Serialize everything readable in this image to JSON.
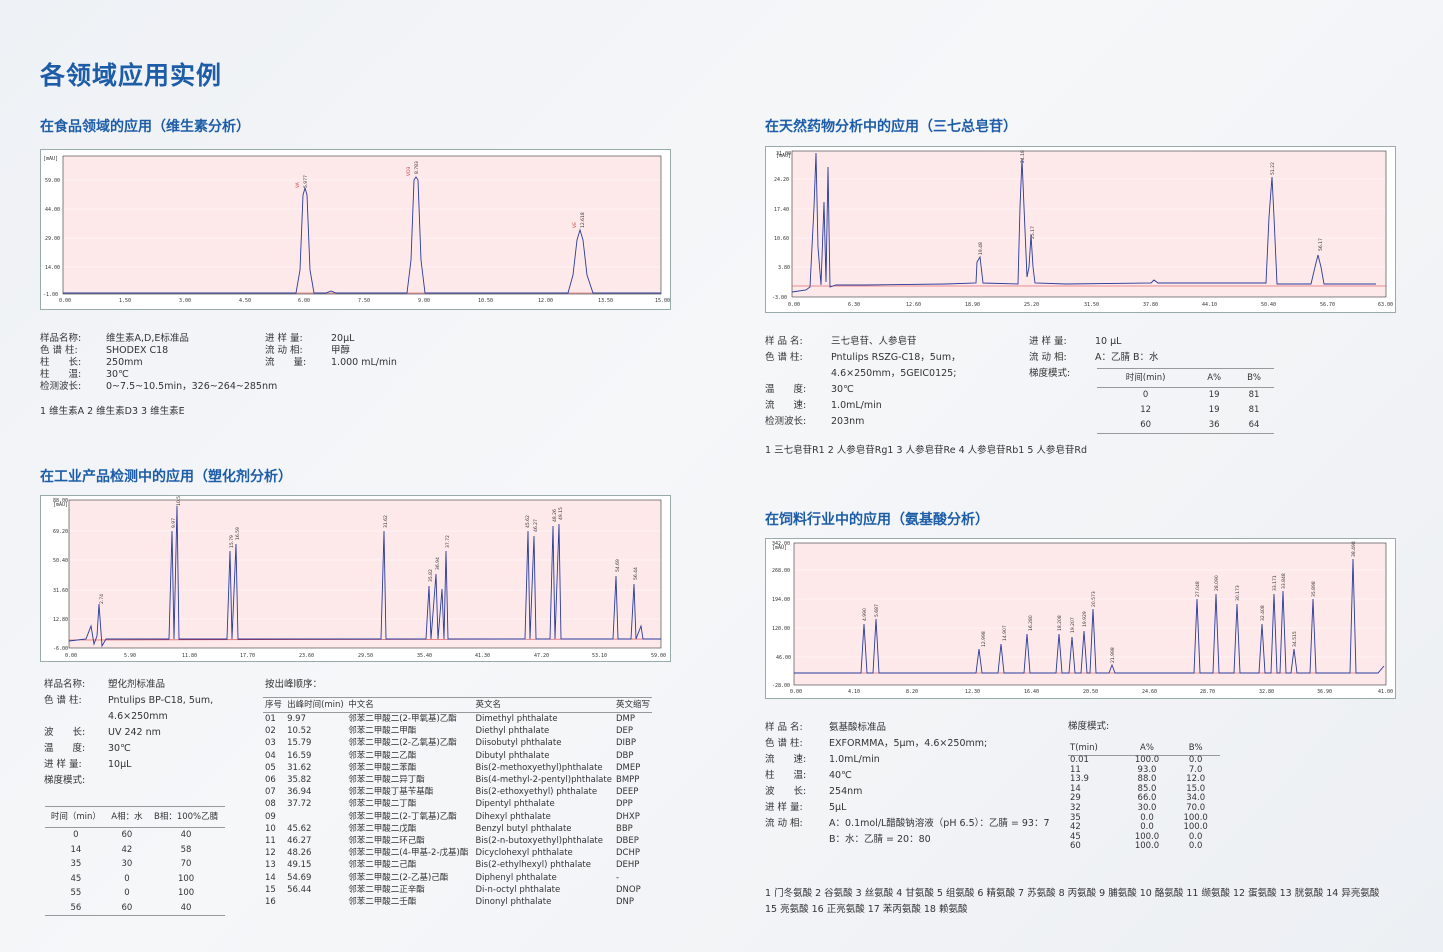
{
  "page_title": "各领域应用实例",
  "food": {
    "title": "在食品领域的应用（维生素分析）",
    "params_left": [
      {
        "k": "样品名称:",
        "v": "维生素A,D,E标准品"
      },
      {
        "k": "色 谱 柱:",
        "v": "SHODEX C18"
      },
      {
        "k": "柱　　长:",
        "v": "250mm"
      },
      {
        "k": "柱　　温:",
        "v": "30℃"
      },
      {
        "k": "检测波长:",
        "v": "0~7.5~10.5min，326~264~285nm"
      }
    ],
    "params_right": [
      {
        "k": "进 样 量:",
        "v": "20μL"
      },
      {
        "k": "流 动 相:",
        "v": "甲醇"
      },
      {
        "k": "流　　量:",
        "v": "1.000 mL/min"
      }
    ],
    "peaks_legend": "1 维生素A   2 维生素D3   3 维生素E"
  },
  "herb": {
    "title": "在天然药物分析中的应用（三七总皂苷）",
    "params_left": [
      {
        "k": "样 品 名:",
        "v": "三七皂苷、人参皂苷"
      },
      {
        "k": "色 谱 柱:",
        "v": "Pntulips RSZG-C18，5um，"
      },
      {
        "k": "",
        "v": "4.6×250mm，5GEIC0125;"
      },
      {
        "k": "温　　度:",
        "v": "30℃"
      },
      {
        "k": "流　　速:",
        "v": "1.0mL/min"
      },
      {
        "k": "检测波长:",
        "v": "203nm"
      }
    ],
    "params_right": [
      {
        "k": "进 样 量:",
        "v": "10 μL"
      },
      {
        "k": "流 动 相:",
        "v": "A：乙腈  B：水"
      },
      {
        "k": "梯度模式:",
        "v": ""
      }
    ],
    "gradient_headers": [
      "时间(min)",
      "A%",
      "B%"
    ],
    "gradient_rows": [
      [
        "0",
        "19",
        "81"
      ],
      [
        "12",
        "19",
        "81"
      ],
      [
        "60",
        "36",
        "64"
      ]
    ],
    "peaks_legend": "1 三七皂苷R1  2 人参皂苷Rg1  3 人参皂苷Re   4 人参皂苷Rb1  5 人参皂苷Rd"
  },
  "plastic": {
    "title": "在工业产品检测中的应用（塑化剂分析）",
    "params": [
      {
        "k": "样品名称:",
        "v": "塑化剂标准品"
      },
      {
        "k": "色 谱 柱:",
        "v": "Pntulips BP-C18, 5um,"
      },
      {
        "k": "",
        "v": "4.6×250mm"
      },
      {
        "k": "波　　长:",
        "v": "UV 242 nm"
      },
      {
        "k": "温　　度:",
        "v": "30℃"
      },
      {
        "k": "进 样 量:",
        "v": "10μL"
      },
      {
        "k": "梯度模式:",
        "v": ""
      }
    ],
    "gradient_headers": [
      "时间（min）",
      "A相：水",
      "B相：100%乙腈"
    ],
    "gradient_rows": [
      [
        "0",
        "60",
        "40"
      ],
      [
        "14",
        "42",
        "58"
      ],
      [
        "35",
        "30",
        "70"
      ],
      [
        "45",
        "0",
        "100"
      ],
      [
        "55",
        "0",
        "100"
      ],
      [
        "56",
        "60",
        "40"
      ]
    ],
    "order_title": "按出峰顺序：",
    "order_headers": [
      "序号",
      "出峰时间(min)",
      "中文名",
      "英文名",
      "英文缩写"
    ],
    "order_rows": [
      [
        "01",
        "9.97",
        "邻苯二甲酸二(2-甲氧基)乙酯",
        "Dimethyl phthalate",
        "DMP"
      ],
      [
        "02",
        "10.52",
        "邻苯二甲酸二甲酯",
        "Diethyl phthalate",
        "DEP"
      ],
      [
        "03",
        "15.79",
        "邻苯二甲酸二(2-乙氧基)乙酯",
        "Diisobutyl phthalate",
        "DIBP"
      ],
      [
        "04",
        "16.59",
        "邻苯二甲酸二乙酯",
        "Dibutyl phthalate",
        "DBP"
      ],
      [
        "05",
        "31.62",
        "邻苯二甲酸二苯酯",
        "Bis(2-methoxyethyl)phthalate",
        "DMEP"
      ],
      [
        "06",
        "35.82",
        "邻苯二甲酸二异丁酯",
        "Bis(4-methyl-2-pentyl)phthalate",
        "BMPP"
      ],
      [
        "07",
        "36.94",
        "邻苯二甲酸丁基苄基酯",
        "Bis(2-ethoxyethyl) phthalate",
        "DEEP"
      ],
      [
        "08",
        "37.72",
        "邻苯二甲酸二丁酯",
        "Dipentyl phthalate",
        "DPP"
      ],
      [
        "09",
        "",
        "邻苯二甲酸二(2-丁氧基)乙酯",
        "Dihexyl phthalate",
        "DHXP"
      ],
      [
        "10",
        "45.62",
        "邻苯二甲酸二戊酯",
        "Benzyl butyl phthalate",
        "BBP"
      ],
      [
        "11",
        "46.27",
        "邻苯二甲酸二环己酯",
        "Bis(2-n-butoxyethyl)phthalate",
        "DBEP"
      ],
      [
        "12",
        "48.26",
        "邻苯二甲酸二(4-甲基-2-戊基)酯",
        "Dicyclohexyl phthalate",
        "DCHP"
      ],
      [
        "13",
        "49.15",
        "邻苯二甲酸二己酯",
        "Bis(2-ethylhexyl) phthalate",
        "DEHP"
      ],
      [
        "14",
        "54.69",
        "邻苯二甲酸二(2-乙基)己酯",
        "Diphenyl phthalate",
        "-"
      ],
      [
        "15",
        "56.44",
        "邻苯二甲酸二正辛酯",
        "Di-n-octyl phthalate",
        "DNOP"
      ],
      [
        "16",
        "",
        "邻苯二甲酸二壬酯",
        "Dinonyl phthalate",
        "DNP"
      ]
    ]
  },
  "feed": {
    "title": "在饲料行业中的应用（氨基酸分析）",
    "params": [
      {
        "k": "样 品 名:",
        "v": "氨基酸标准品"
      },
      {
        "k": "色 谱 柱:",
        "v": "EXFORMMA，5μm，4.6×250mm;"
      },
      {
        "k": "流　　速:",
        "v": "1.0mL/min"
      },
      {
        "k": "柱　　温:",
        "v": "40℃"
      },
      {
        "k": "波　　长:",
        "v": "254nm"
      },
      {
        "k": "进 样 量:",
        "v": "5μL"
      },
      {
        "k": "流 动 相:",
        "v": "A：0.1mol/L醋酸钠溶液（pH 6.5）：乙腈 = 93：7"
      },
      {
        "k": "",
        "v": "B：水：乙腈 = 20：80"
      }
    ],
    "gradient_title": "梯度模式:",
    "gradient_headers": [
      "T(min)",
      "A%",
      "B%"
    ],
    "gradient_rows": [
      [
        "0.01",
        "100.0",
        "0.0"
      ],
      [
        "11",
        "93.0",
        "7.0"
      ],
      [
        "13.9",
        "88.0",
        "12.0"
      ],
      [
        "14",
        "85.0",
        "15.0"
      ],
      [
        "29",
        "66.0",
        "34.0"
      ],
      [
        "32",
        "30.0",
        "70.0"
      ],
      [
        "35",
        "0.0",
        "100.0"
      ],
      [
        "42",
        "0.0",
        "100.0"
      ],
      [
        "45",
        "100.0",
        "0.0"
      ],
      [
        "60",
        "100.0",
        "0.0"
      ]
    ],
    "peaks_legend_1": "1 门冬氨酸  2 谷氨酸  3 丝氨酸  4 甘氨酸  5 组氨酸  6 精氨酸  7 苏氨酸  8 丙氨酸  9 脯氨酸  10 酪氨酸  11 缬氨酸  12 蛋氨酸  13 胱氨酸  14 异亮氨酸",
    "peaks_legend_2": "15 亮氨酸  16 正亮氨酸  17 苯丙氨酸  18 赖氨酸"
  },
  "colors": {
    "accent": "#1d5da8",
    "trace": "#2a3b9a",
    "baseline": "#d23b3b",
    "plot_bg": "#fde8ea"
  }
}
